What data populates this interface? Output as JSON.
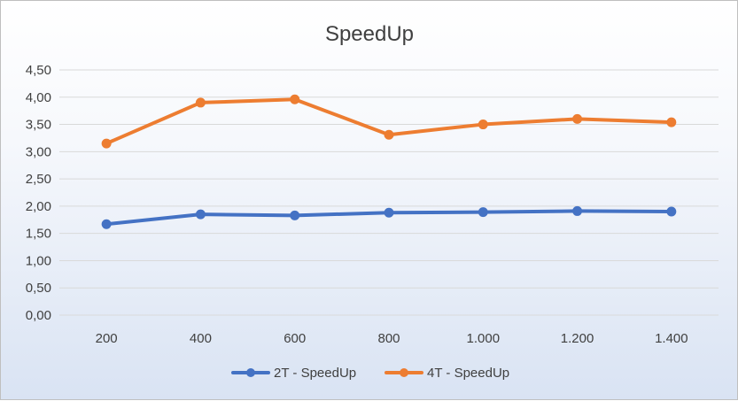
{
  "chart_data": {
    "type": "line",
    "title": "SpeedUp",
    "categories": [
      "200",
      "400",
      "600",
      "800",
      "1.000",
      "1.200",
      "1.400"
    ],
    "y_ticks": [
      "0,00",
      "0,50",
      "1,00",
      "1,50",
      "2,00",
      "2,50",
      "3,00",
      "3,50",
      "4,00",
      "4,50"
    ],
    "ylim": [
      0,
      4.5
    ],
    "grid": true,
    "legend_position": "bottom",
    "series": [
      {
        "name": "2T - SpeedUp",
        "color": "#4472c4",
        "values": [
          1.67,
          1.85,
          1.83,
          1.88,
          1.89,
          1.91,
          1.9
        ]
      },
      {
        "name": "4T - SpeedUp",
        "color": "#ed7d31",
        "values": [
          3.15,
          3.9,
          3.96,
          3.31,
          3.5,
          3.6,
          3.54
        ]
      }
    ]
  }
}
